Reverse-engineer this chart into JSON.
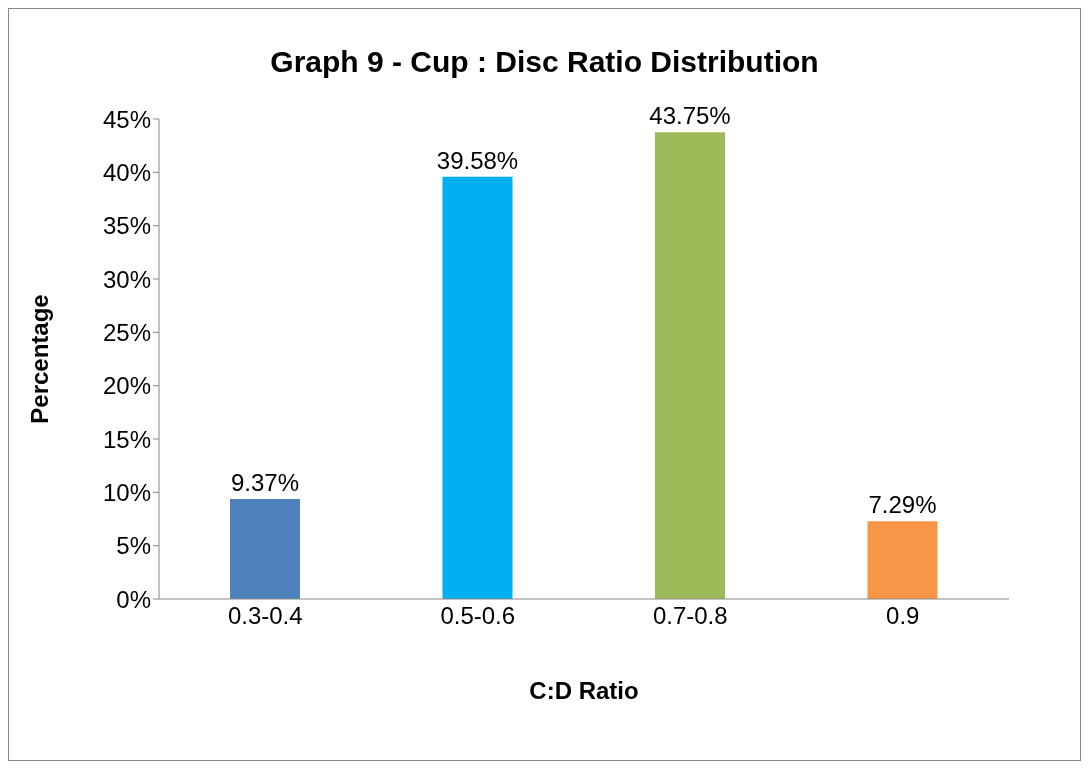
{
  "chart_data": {
    "type": "bar",
    "title": "Graph 9  - Cup : Disc Ratio Distribution",
    "xlabel": "C:D Ratio",
    "ylabel": "Percentage",
    "categories": [
      "0.3-0.4",
      "0.5-0.6",
      "0.7-0.8",
      "0.9"
    ],
    "values": [
      9.37,
      39.58,
      43.75,
      7.29
    ],
    "colors": [
      "#4f81bd",
      "#00b0f0",
      "#9bbb59",
      "#f79646"
    ],
    "value_labels": [
      "9.37%",
      "39.58%",
      "43.75%",
      "7.29%"
    ],
    "ylim": [
      0,
      45
    ],
    "yticks": [
      {
        "value": 0,
        "label": "0%"
      },
      {
        "value": 5,
        "label": "5%"
      },
      {
        "value": 10,
        "label": "10%"
      },
      {
        "value": 15,
        "label": "15%"
      },
      {
        "value": 20,
        "label": "20%"
      },
      {
        "value": 25,
        "label": "25%"
      },
      {
        "value": 30,
        "label": "30%"
      },
      {
        "value": 35,
        "label": "35%"
      },
      {
        "value": 40,
        "label": "40%"
      },
      {
        "value": 45,
        "label": "45%"
      }
    ]
  }
}
